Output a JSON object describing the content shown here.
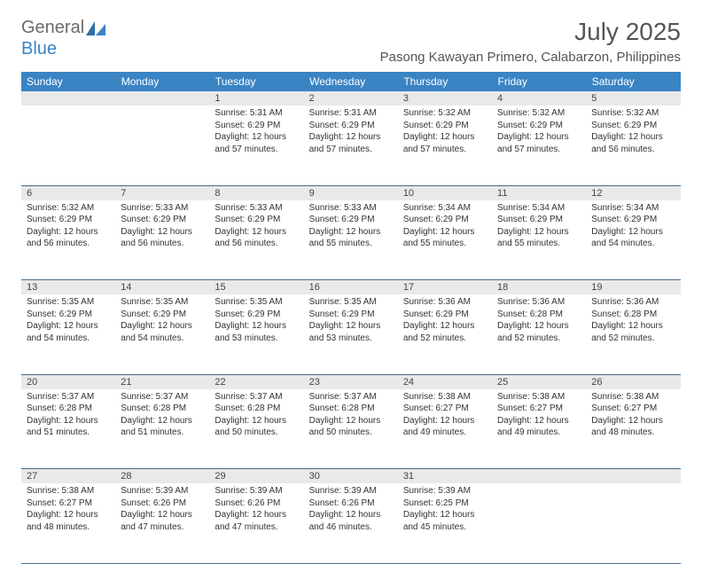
{
  "logo": {
    "general": "General",
    "blue": "Blue"
  },
  "title": "July 2025",
  "location": "Pasong Kawayan Primero, Calabarzon, Philippines",
  "colors": {
    "header_bg": "#3a84c4",
    "header_text": "#ffffff",
    "daynum_bg": "#e9e9e9",
    "text": "#333333",
    "border": "#4a6a8a"
  },
  "weekdays": [
    "Sunday",
    "Monday",
    "Tuesday",
    "Wednesday",
    "Thursday",
    "Friday",
    "Saturday"
  ],
  "weeks": [
    [
      null,
      null,
      {
        "n": "1",
        "sr": "Sunrise: 5:31 AM",
        "ss": "Sunset: 6:29 PM",
        "d1": "Daylight: 12 hours",
        "d2": "and 57 minutes."
      },
      {
        "n": "2",
        "sr": "Sunrise: 5:31 AM",
        "ss": "Sunset: 6:29 PM",
        "d1": "Daylight: 12 hours",
        "d2": "and 57 minutes."
      },
      {
        "n": "3",
        "sr": "Sunrise: 5:32 AM",
        "ss": "Sunset: 6:29 PM",
        "d1": "Daylight: 12 hours",
        "d2": "and 57 minutes."
      },
      {
        "n": "4",
        "sr": "Sunrise: 5:32 AM",
        "ss": "Sunset: 6:29 PM",
        "d1": "Daylight: 12 hours",
        "d2": "and 57 minutes."
      },
      {
        "n": "5",
        "sr": "Sunrise: 5:32 AM",
        "ss": "Sunset: 6:29 PM",
        "d1": "Daylight: 12 hours",
        "d2": "and 56 minutes."
      }
    ],
    [
      {
        "n": "6",
        "sr": "Sunrise: 5:32 AM",
        "ss": "Sunset: 6:29 PM",
        "d1": "Daylight: 12 hours",
        "d2": "and 56 minutes."
      },
      {
        "n": "7",
        "sr": "Sunrise: 5:33 AM",
        "ss": "Sunset: 6:29 PM",
        "d1": "Daylight: 12 hours",
        "d2": "and 56 minutes."
      },
      {
        "n": "8",
        "sr": "Sunrise: 5:33 AM",
        "ss": "Sunset: 6:29 PM",
        "d1": "Daylight: 12 hours",
        "d2": "and 56 minutes."
      },
      {
        "n": "9",
        "sr": "Sunrise: 5:33 AM",
        "ss": "Sunset: 6:29 PM",
        "d1": "Daylight: 12 hours",
        "d2": "and 55 minutes."
      },
      {
        "n": "10",
        "sr": "Sunrise: 5:34 AM",
        "ss": "Sunset: 6:29 PM",
        "d1": "Daylight: 12 hours",
        "d2": "and 55 minutes."
      },
      {
        "n": "11",
        "sr": "Sunrise: 5:34 AM",
        "ss": "Sunset: 6:29 PM",
        "d1": "Daylight: 12 hours",
        "d2": "and 55 minutes."
      },
      {
        "n": "12",
        "sr": "Sunrise: 5:34 AM",
        "ss": "Sunset: 6:29 PM",
        "d1": "Daylight: 12 hours",
        "d2": "and 54 minutes."
      }
    ],
    [
      {
        "n": "13",
        "sr": "Sunrise: 5:35 AM",
        "ss": "Sunset: 6:29 PM",
        "d1": "Daylight: 12 hours",
        "d2": "and 54 minutes."
      },
      {
        "n": "14",
        "sr": "Sunrise: 5:35 AM",
        "ss": "Sunset: 6:29 PM",
        "d1": "Daylight: 12 hours",
        "d2": "and 54 minutes."
      },
      {
        "n": "15",
        "sr": "Sunrise: 5:35 AM",
        "ss": "Sunset: 6:29 PM",
        "d1": "Daylight: 12 hours",
        "d2": "and 53 minutes."
      },
      {
        "n": "16",
        "sr": "Sunrise: 5:35 AM",
        "ss": "Sunset: 6:29 PM",
        "d1": "Daylight: 12 hours",
        "d2": "and 53 minutes."
      },
      {
        "n": "17",
        "sr": "Sunrise: 5:36 AM",
        "ss": "Sunset: 6:29 PM",
        "d1": "Daylight: 12 hours",
        "d2": "and 52 minutes."
      },
      {
        "n": "18",
        "sr": "Sunrise: 5:36 AM",
        "ss": "Sunset: 6:28 PM",
        "d1": "Daylight: 12 hours",
        "d2": "and 52 minutes."
      },
      {
        "n": "19",
        "sr": "Sunrise: 5:36 AM",
        "ss": "Sunset: 6:28 PM",
        "d1": "Daylight: 12 hours",
        "d2": "and 52 minutes."
      }
    ],
    [
      {
        "n": "20",
        "sr": "Sunrise: 5:37 AM",
        "ss": "Sunset: 6:28 PM",
        "d1": "Daylight: 12 hours",
        "d2": "and 51 minutes."
      },
      {
        "n": "21",
        "sr": "Sunrise: 5:37 AM",
        "ss": "Sunset: 6:28 PM",
        "d1": "Daylight: 12 hours",
        "d2": "and 51 minutes."
      },
      {
        "n": "22",
        "sr": "Sunrise: 5:37 AM",
        "ss": "Sunset: 6:28 PM",
        "d1": "Daylight: 12 hours",
        "d2": "and 50 minutes."
      },
      {
        "n": "23",
        "sr": "Sunrise: 5:37 AM",
        "ss": "Sunset: 6:28 PM",
        "d1": "Daylight: 12 hours",
        "d2": "and 50 minutes."
      },
      {
        "n": "24",
        "sr": "Sunrise: 5:38 AM",
        "ss": "Sunset: 6:27 PM",
        "d1": "Daylight: 12 hours",
        "d2": "and 49 minutes."
      },
      {
        "n": "25",
        "sr": "Sunrise: 5:38 AM",
        "ss": "Sunset: 6:27 PM",
        "d1": "Daylight: 12 hours",
        "d2": "and 49 minutes."
      },
      {
        "n": "26",
        "sr": "Sunrise: 5:38 AM",
        "ss": "Sunset: 6:27 PM",
        "d1": "Daylight: 12 hours",
        "d2": "and 48 minutes."
      }
    ],
    [
      {
        "n": "27",
        "sr": "Sunrise: 5:38 AM",
        "ss": "Sunset: 6:27 PM",
        "d1": "Daylight: 12 hours",
        "d2": "and 48 minutes."
      },
      {
        "n": "28",
        "sr": "Sunrise: 5:39 AM",
        "ss": "Sunset: 6:26 PM",
        "d1": "Daylight: 12 hours",
        "d2": "and 47 minutes."
      },
      {
        "n": "29",
        "sr": "Sunrise: 5:39 AM",
        "ss": "Sunset: 6:26 PM",
        "d1": "Daylight: 12 hours",
        "d2": "and 47 minutes."
      },
      {
        "n": "30",
        "sr": "Sunrise: 5:39 AM",
        "ss": "Sunset: 6:26 PM",
        "d1": "Daylight: 12 hours",
        "d2": "and 46 minutes."
      },
      {
        "n": "31",
        "sr": "Sunrise: 5:39 AM",
        "ss": "Sunset: 6:25 PM",
        "d1": "Daylight: 12 hours",
        "d2": "and 45 minutes."
      },
      null,
      null
    ]
  ]
}
